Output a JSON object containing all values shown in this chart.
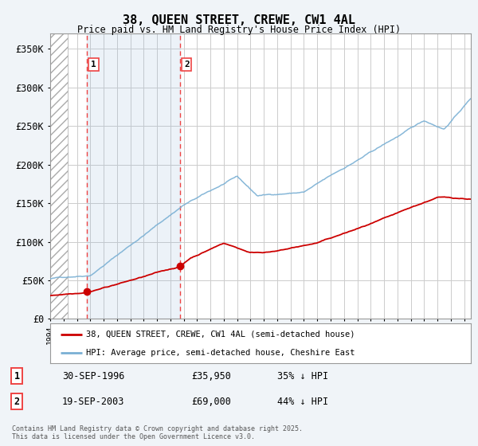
{
  "title": "38, QUEEN STREET, CREWE, CW1 4AL",
  "subtitle": "Price paid vs. HM Land Registry's House Price Index (HPI)",
  "ylabel_ticks": [
    "£0",
    "£50K",
    "£100K",
    "£150K",
    "£200K",
    "£250K",
    "£300K",
    "£350K"
  ],
  "ytick_values": [
    0,
    50000,
    100000,
    150000,
    200000,
    250000,
    300000,
    350000
  ],
  "ylim": [
    0,
    370000
  ],
  "xlim_start": 1994.0,
  "xlim_end": 2025.5,
  "red_line_color": "#cc0000",
  "blue_line_color": "#7ab0d4",
  "vline_color": "#ee4444",
  "marker_color": "#cc0000",
  "shade_color": "#ddeeff",
  "legend_label_red": "38, QUEEN STREET, CREWE, CW1 4AL (semi-detached house)",
  "legend_label_blue": "HPI: Average price, semi-detached house, Cheshire East",
  "transaction1_date": "30-SEP-1996",
  "transaction1_price": "£35,950",
  "transaction1_hpi": "35% ↓ HPI",
  "transaction1_x": 1996.75,
  "transaction1_y": 35950,
  "transaction2_date": "19-SEP-2003",
  "transaction2_price": "£69,000",
  "transaction2_hpi": "44% ↓ HPI",
  "transaction2_x": 2003.72,
  "transaction2_y": 69000,
  "copyright_text": "Contains HM Land Registry data © Crown copyright and database right 2025.\nThis data is licensed under the Open Government Licence v3.0.",
  "background_color": "#f0f4f8",
  "plot_background": "#ffffff"
}
